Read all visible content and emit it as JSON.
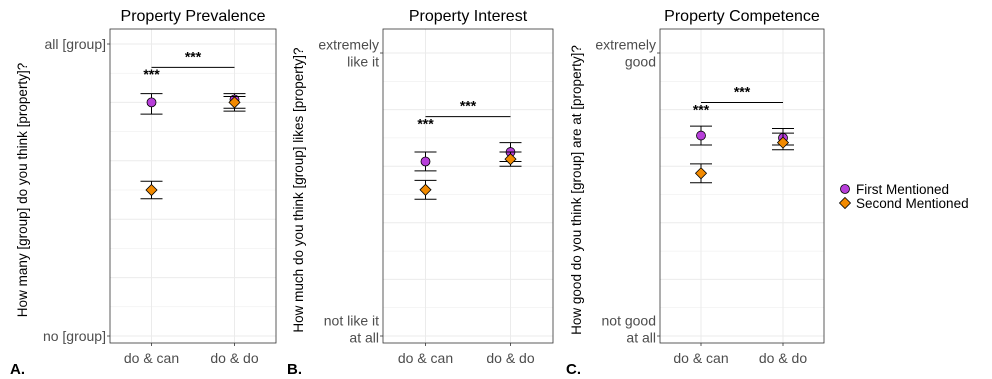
{
  "chart_data": [
    {
      "type": "scatter",
      "panel_label": "A.",
      "title": "Property Prevalence",
      "ylabel": "How many [group] do you think [property]?",
      "categories": [
        "do & can",
        "do & do"
      ],
      "y_tick_labels": [
        {
          "value": 0,
          "lines": [
            "no [group]"
          ]
        },
        {
          "value": 100,
          "lines": [
            "all [group]"
          ]
        }
      ],
      "ylim": [
        0,
        100
      ],
      "series": [
        {
          "name": "First Mentioned",
          "color": "#b73fd9",
          "marker": "circle",
          "values": [
            80,
            81
          ],
          "ci_low": [
            76,
            78
          ],
          "ci_high": [
            83,
            83
          ]
        },
        {
          "name": "Second Mentioned",
          "color": "#f28a00",
          "marker": "diamond",
          "values": [
            50,
            80
          ],
          "ci_low": [
            47,
            77
          ],
          "ci_high": [
            53,
            82
          ]
        }
      ],
      "annotations": [
        {
          "type": "star",
          "category": "do & can",
          "text": "***"
        },
        {
          "type": "bracket",
          "from": "do & can",
          "to": "do & do",
          "text": "***"
        }
      ],
      "grid": true
    },
    {
      "type": "scatter",
      "panel_label": "B.",
      "title": "Property Interest",
      "ylabel": "How much do you think [group] likes [property]?",
      "categories": [
        "do & can",
        "do & do"
      ],
      "y_tick_labels": [
        {
          "value": 1,
          "lines": [
            "not like it",
            "at all"
          ]
        },
        {
          "value": 7,
          "lines": [
            "extremely",
            "like it"
          ]
        }
      ],
      "ylim": [
        1,
        7
      ],
      "series": [
        {
          "name": "First Mentioned",
          "color": "#b73fd9",
          "marker": "circle",
          "values": [
            4.7,
            4.9
          ],
          "ci_low": [
            4.5,
            4.7
          ],
          "ci_high": [
            4.9,
            5.1
          ]
        },
        {
          "name": "Second Mentioned",
          "color": "#f28a00",
          "marker": "diamond",
          "values": [
            4.1,
            4.75
          ],
          "ci_low": [
            3.9,
            4.6
          ],
          "ci_high": [
            4.3,
            4.9
          ]
        }
      ],
      "annotations": [
        {
          "type": "star",
          "category": "do & can",
          "text": "***"
        },
        {
          "type": "bracket",
          "from": "do & can",
          "to": "do & do",
          "text": "***"
        }
      ],
      "grid": true
    },
    {
      "type": "scatter",
      "panel_label": "C.",
      "title": "Property Competence",
      "ylabel": "How good do you think [group] are at [property]?",
      "categories": [
        "do & can",
        "do & do"
      ],
      "y_tick_labels": [
        {
          "value": 1,
          "lines": [
            "not good",
            "at all"
          ]
        },
        {
          "value": 7,
          "lines": [
            "extremely",
            "good"
          ]
        }
      ],
      "ylim": [
        1,
        7
      ],
      "series": [
        {
          "name": "First Mentioned",
          "color": "#b73fd9",
          "marker": "circle",
          "values": [
            5.25,
            5.2
          ],
          "ci_low": [
            5.05,
            5.05
          ],
          "ci_high": [
            5.45,
            5.4
          ]
        },
        {
          "name": "Second Mentioned",
          "color": "#f28a00",
          "marker": "diamond",
          "values": [
            4.45,
            5.1
          ],
          "ci_low": [
            4.25,
            4.95
          ],
          "ci_high": [
            4.65,
            5.3
          ]
        }
      ],
      "annotations": [
        {
          "type": "star",
          "category": "do & can",
          "text": "***"
        },
        {
          "type": "bracket",
          "from": "do & can",
          "to": "do & do",
          "text": "***"
        }
      ],
      "grid": true
    }
  ],
  "legend": {
    "placement": "right",
    "items": [
      {
        "name": "First Mentioned",
        "color": "#b73fd9",
        "marker": "circle"
      },
      {
        "name": "Second Mentioned",
        "color": "#f28a00",
        "marker": "diamond"
      }
    ]
  }
}
